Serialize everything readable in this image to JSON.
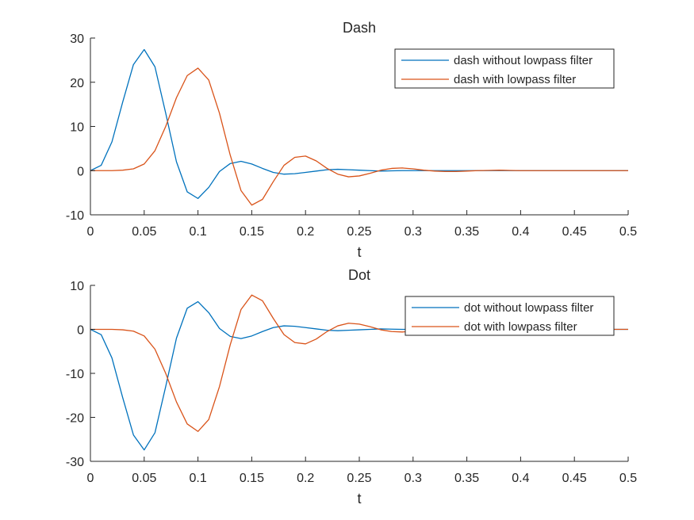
{
  "colors": {
    "series1": "#0072BD",
    "series2": "#D95319",
    "axis": "#262626"
  },
  "chart_data": [
    {
      "type": "line",
      "title": "Dash",
      "xlabel": "t",
      "ylabel": "",
      "xlim": [
        0,
        0.5
      ],
      "ylim": [
        -10,
        30
      ],
      "xticks": [
        "0",
        "0.05",
        "0.1",
        "0.15",
        "0.2",
        "0.25",
        "0.3",
        "0.35",
        "0.4",
        "0.45",
        "0.5"
      ],
      "yticks": [
        "-10",
        "0",
        "10",
        "20",
        "30"
      ],
      "grid": false,
      "legend_position": "top-right",
      "x": [
        0,
        0.01,
        0.02,
        0.03,
        0.04,
        0.05,
        0.06,
        0.07,
        0.08,
        0.09,
        0.1,
        0.11,
        0.12,
        0.13,
        0.14,
        0.15,
        0.16,
        0.17,
        0.18,
        0.19,
        0.2,
        0.21,
        0.22,
        0.23,
        0.24,
        0.25,
        0.26,
        0.27,
        0.28,
        0.29,
        0.3,
        0.31,
        0.32,
        0.33,
        0.34,
        0.35,
        0.36,
        0.37,
        0.38,
        0.39,
        0.4,
        0.41,
        0.42,
        0.43,
        0.44,
        0.45,
        0.46,
        0.47,
        0.48,
        0.49,
        0.5
      ],
      "series": [
        {
          "name": "dash without lowpass filter",
          "values": [
            0,
            1.2,
            6.5,
            15.5,
            24.0,
            27.4,
            23.5,
            13.0,
            2.0,
            -4.8,
            -6.3,
            -3.8,
            -0.2,
            1.6,
            2.1,
            1.5,
            0.5,
            -0.4,
            -0.8,
            -0.7,
            -0.4,
            -0.1,
            0.2,
            0.3,
            0.2,
            0.1,
            0,
            -0.1,
            -0.05,
            0,
            0,
            0,
            0,
            0,
            0,
            0,
            0,
            0,
            0,
            0,
            0,
            0,
            0,
            0,
            0,
            0,
            0,
            0,
            0,
            0,
            0
          ]
        },
        {
          "name": "dash with lowpass filter",
          "values": [
            0,
            0,
            0,
            0.1,
            0.4,
            1.5,
            4.5,
            10.0,
            16.5,
            21.5,
            23.2,
            20.5,
            13.0,
            3.5,
            -4.5,
            -7.8,
            -6.5,
            -2.5,
            1.2,
            3.0,
            3.3,
            2.2,
            0.5,
            -0.8,
            -1.4,
            -1.2,
            -0.6,
            0.1,
            0.5,
            0.6,
            0.4,
            0.1,
            -0.1,
            -0.2,
            -0.2,
            -0.1,
            0,
            0.05,
            0.1,
            0.05,
            0,
            0,
            0,
            0,
            0,
            0,
            0,
            0,
            0,
            0,
            0
          ]
        }
      ]
    },
    {
      "type": "line",
      "title": "Dot",
      "xlabel": "t",
      "ylabel": "",
      "xlim": [
        0,
        0.5
      ],
      "ylim": [
        -30,
        10
      ],
      "xticks": [
        "0",
        "0.05",
        "0.1",
        "0.15",
        "0.2",
        "0.25",
        "0.3",
        "0.35",
        "0.4",
        "0.45",
        "0.5"
      ],
      "yticks": [
        "-30",
        "-20",
        "-10",
        "0",
        "10"
      ],
      "grid": false,
      "legend_position": "top-right",
      "x": [
        0,
        0.01,
        0.02,
        0.03,
        0.04,
        0.05,
        0.06,
        0.07,
        0.08,
        0.09,
        0.1,
        0.11,
        0.12,
        0.13,
        0.14,
        0.15,
        0.16,
        0.17,
        0.18,
        0.19,
        0.2,
        0.21,
        0.22,
        0.23,
        0.24,
        0.25,
        0.26,
        0.27,
        0.28,
        0.29,
        0.3,
        0.31,
        0.32,
        0.33,
        0.34,
        0.35,
        0.36,
        0.37,
        0.38,
        0.39,
        0.4,
        0.41,
        0.42,
        0.43,
        0.44,
        0.45,
        0.46,
        0.47,
        0.48,
        0.49,
        0.5
      ],
      "series": [
        {
          "name": "dot without lowpass filter",
          "values": [
            0,
            -1.2,
            -6.5,
            -15.5,
            -24.0,
            -27.4,
            -23.5,
            -13.0,
            -2.0,
            4.8,
            6.3,
            3.8,
            0.2,
            -1.6,
            -2.1,
            -1.5,
            -0.5,
            0.4,
            0.8,
            0.7,
            0.4,
            0.1,
            -0.2,
            -0.3,
            -0.2,
            -0.1,
            0,
            0.1,
            0.05,
            0,
            0,
            0,
            0,
            0,
            0,
            0,
            0,
            0,
            0,
            0,
            0,
            0,
            0,
            0,
            0,
            0,
            0,
            0,
            0,
            0,
            0
          ]
        },
        {
          "name": "dot with lowpass filter",
          "values": [
            0,
            0,
            0,
            -0.1,
            -0.4,
            -1.5,
            -4.5,
            -10.0,
            -16.5,
            -21.5,
            -23.2,
            -20.5,
            -13.0,
            -3.5,
            4.5,
            7.8,
            6.5,
            2.5,
            -1.2,
            -3.0,
            -3.3,
            -2.2,
            -0.5,
            0.8,
            1.4,
            1.2,
            0.6,
            -0.1,
            -0.5,
            -0.6,
            -0.4,
            -0.1,
            0.1,
            0.2,
            0.2,
            0.1,
            0,
            -0.05,
            -0.1,
            -0.05,
            0,
            0,
            0,
            0,
            0,
            0,
            0,
            0,
            0,
            0,
            0
          ]
        }
      ]
    }
  ]
}
